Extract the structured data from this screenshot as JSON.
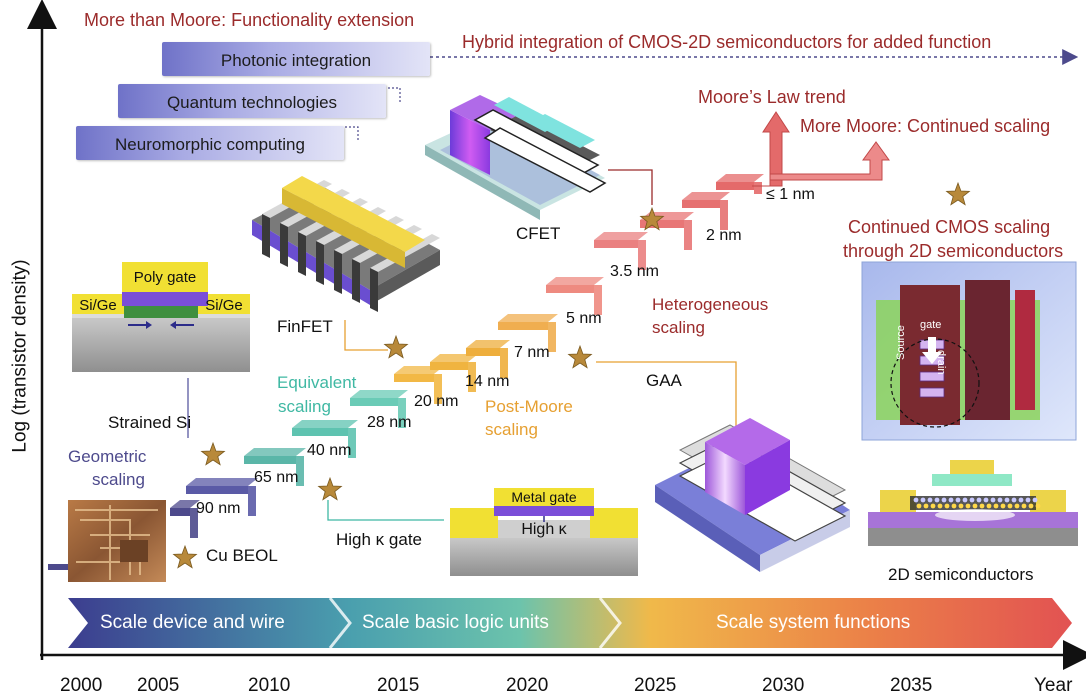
{
  "axes": {
    "ylabel": "Log (transistor density)",
    "xticks": [
      "2000",
      "2005",
      "2010",
      "2015",
      "2020",
      "2025",
      "2030",
      "2035"
    ],
    "xlabel": "Year"
  },
  "more_than_moore": {
    "title": "More than Moore: Functionality extension",
    "items": [
      "Photonic integration",
      "Quantum technologies",
      "Neuromorphic computing"
    ],
    "hybrid_note": "Hybrid integration of CMOS-2D semiconductors for added function"
  },
  "trend": {
    "moores_law": "Moore’s Law trend",
    "more_moore": "More Moore: Continued scaling",
    "cmos_2d": [
      "Continued CMOS scaling",
      "through 2D semiconductors"
    ]
  },
  "nodes": [
    "90 nm",
    "65 nm",
    "40 nm",
    "28 nm",
    "20 nm",
    "14 nm",
    "7 nm",
    "5 nm",
    "3.5 nm",
    "2 nm",
    "≤ 1 nm"
  ],
  "eras": {
    "geometric": [
      "Geometric",
      "scaling"
    ],
    "equivalent": [
      "Equivalent",
      "scaling"
    ],
    "post_moore": [
      "Post-Moore",
      "scaling"
    ],
    "heterogeneous": [
      "Heterogeneous",
      "scaling"
    ]
  },
  "technologies": {
    "cu_beol": "Cu BEOL",
    "strained_si": "Strained Si",
    "high_k_gate": "High κ gate",
    "finfet": "FinFET",
    "gaa": "GAA",
    "cfet": "CFET",
    "two_d": "2D semiconductors"
  },
  "device_labels": {
    "poly_gate": "Poly gate",
    "sige_left": "Si/Ge",
    "sige_right": "Si/Ge",
    "metal_gate": "Metal gate",
    "high_k": "High κ",
    "source": "Source",
    "gate": "gate",
    "drain": "drain"
  },
  "phases": [
    "Scale device and wire",
    "Scale basic logic units",
    "Scale system functions"
  ],
  "colors": {
    "maroon": "#9b2b2b",
    "navy": "#4d4a8c",
    "teal": "#3fb8a3",
    "orange": "#e6a032",
    "red": "#e36a6a",
    "star": "#b8893a"
  }
}
